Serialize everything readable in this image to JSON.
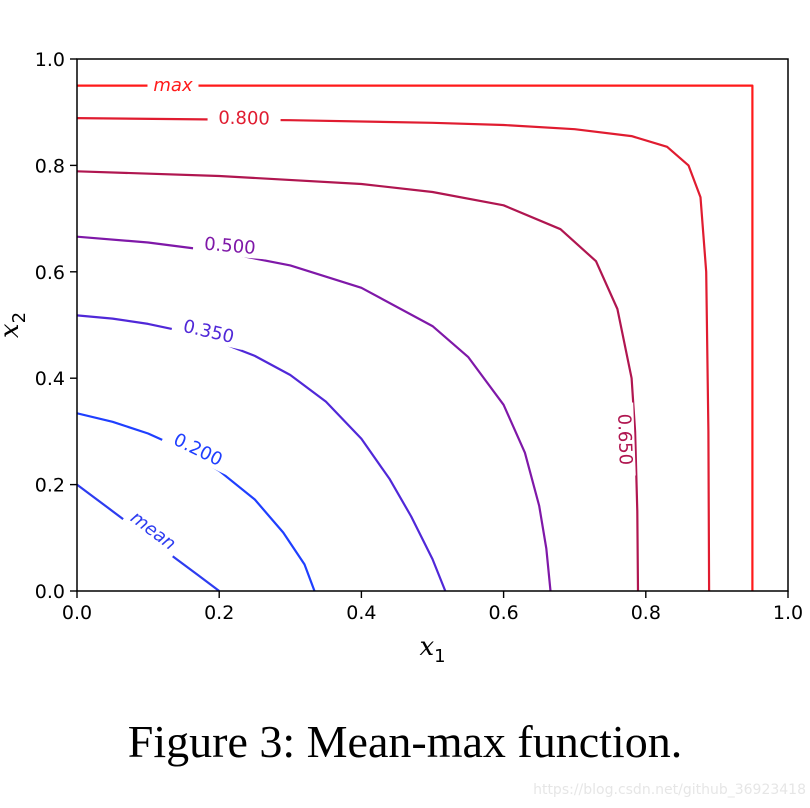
{
  "chart_data": {
    "type": "line",
    "title": "",
    "xlabel": "x",
    "xlabel_sub": "1",
    "ylabel": "x",
    "ylabel_sub": "2",
    "xlim": [
      0.0,
      1.0
    ],
    "ylim": [
      0.0,
      1.0
    ],
    "xticks": [
      "0.0",
      "0.2",
      "0.4",
      "0.6",
      "0.8",
      "1.0"
    ],
    "yticks": [
      "0.0",
      "0.2",
      "0.4",
      "0.6",
      "0.8",
      "1.0"
    ],
    "grid": false,
    "series": [
      {
        "name": "mean",
        "color": "#2d3cf0",
        "points": [
          [
            0.0,
            0.2
          ],
          [
            0.02,
            0.18
          ],
          [
            0.05,
            0.15
          ],
          [
            0.08,
            0.12
          ],
          [
            0.11,
            0.09
          ],
          [
            0.14,
            0.06
          ],
          [
            0.17,
            0.03
          ],
          [
            0.2,
            0.0
          ]
        ]
      },
      {
        "name": "0.200",
        "color": "#1f3fff",
        "points": [
          [
            0.0,
            0.334
          ],
          [
            0.05,
            0.318
          ],
          [
            0.1,
            0.296
          ],
          [
            0.15,
            0.266
          ],
          [
            0.2,
            0.226
          ],
          [
            0.25,
            0.172
          ],
          [
            0.29,
            0.11
          ],
          [
            0.32,
            0.05
          ],
          [
            0.334,
            0.0
          ]
        ]
      },
      {
        "name": "0.350",
        "color": "#5028d8",
        "points": [
          [
            0.0,
            0.518
          ],
          [
            0.05,
            0.512
          ],
          [
            0.1,
            0.502
          ],
          [
            0.15,
            0.488
          ],
          [
            0.2,
            0.468
          ],
          [
            0.25,
            0.442
          ],
          [
            0.3,
            0.406
          ],
          [
            0.35,
            0.356
          ],
          [
            0.4,
            0.286
          ],
          [
            0.44,
            0.21
          ],
          [
            0.47,
            0.14
          ],
          [
            0.5,
            0.06
          ],
          [
            0.518,
            0.0
          ]
        ]
      },
      {
        "name": "0.500",
        "color": "#7f18a8",
        "points": [
          [
            0.0,
            0.666
          ],
          [
            0.1,
            0.655
          ],
          [
            0.2,
            0.638
          ],
          [
            0.3,
            0.612
          ],
          [
            0.4,
            0.57
          ],
          [
            0.5,
            0.498
          ],
          [
            0.55,
            0.44
          ],
          [
            0.6,
            0.35
          ],
          [
            0.63,
            0.26
          ],
          [
            0.65,
            0.16
          ],
          [
            0.66,
            0.08
          ],
          [
            0.666,
            0.0
          ]
        ]
      },
      {
        "name": "0.650",
        "color": "#b01650",
        "points": [
          [
            0.0,
            0.789
          ],
          [
            0.2,
            0.78
          ],
          [
            0.4,
            0.765
          ],
          [
            0.5,
            0.75
          ],
          [
            0.6,
            0.725
          ],
          [
            0.68,
            0.68
          ],
          [
            0.73,
            0.62
          ],
          [
            0.76,
            0.53
          ],
          [
            0.78,
            0.4
          ],
          [
            0.785,
            0.3
          ],
          [
            0.788,
            0.15
          ],
          [
            0.789,
            0.0
          ]
        ]
      },
      {
        "name": "0.800",
        "color": "#e01c30",
        "points": [
          [
            0.0,
            0.889
          ],
          [
            0.3,
            0.885
          ],
          [
            0.5,
            0.88
          ],
          [
            0.6,
            0.876
          ],
          [
            0.7,
            0.868
          ],
          [
            0.78,
            0.855
          ],
          [
            0.83,
            0.835
          ],
          [
            0.86,
            0.8
          ],
          [
            0.877,
            0.74
          ],
          [
            0.885,
            0.6
          ],
          [
            0.888,
            0.3
          ],
          [
            0.889,
            0.0
          ]
        ]
      },
      {
        "name": "max",
        "color": "#ff1a1a",
        "points": [
          [
            0.0,
            0.95
          ],
          [
            0.95,
            0.95
          ],
          [
            0.95,
            0.0
          ]
        ]
      }
    ],
    "contour_labels": [
      {
        "text": "max",
        "x": 0.135,
        "y": 0.95,
        "angle": 0,
        "italic": true,
        "series": 6
      },
      {
        "text": "0.800",
        "x": 0.235,
        "y": 0.888,
        "angle": 1,
        "italic": false,
        "series": 5
      },
      {
        "text": "0.500",
        "x": 0.215,
        "y": 0.648,
        "angle": 5,
        "italic": false,
        "series": 3
      },
      {
        "text": "0.350",
        "x": 0.185,
        "y": 0.487,
        "angle": 13,
        "italic": false,
        "series": 2
      },
      {
        "text": "0.200",
        "x": 0.17,
        "y": 0.265,
        "angle": 26,
        "italic": false,
        "series": 1
      },
      {
        "text": "0.650",
        "x": 0.77,
        "y": 0.285,
        "angle": 88,
        "italic": false,
        "series": 4
      },
      {
        "text": "mean",
        "x": 0.107,
        "y": 0.113,
        "angle": 37,
        "italic": true,
        "series": 0
      }
    ]
  },
  "caption": "Figure 3: Mean-max function.",
  "watermark": "https://blog.csdn.net/github_36923418"
}
